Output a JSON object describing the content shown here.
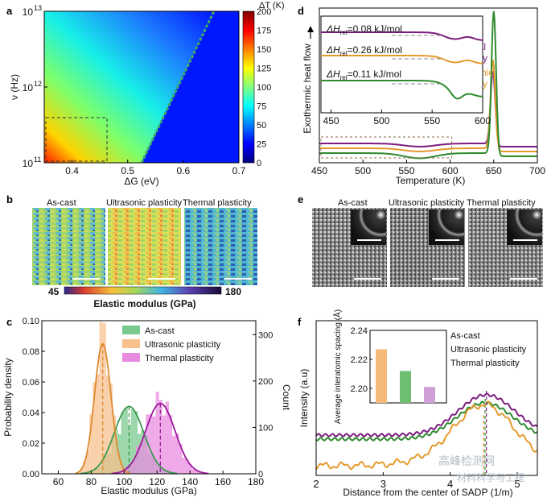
{
  "chart_data": [
    {
      "panel": "a",
      "type": "heatmap",
      "xlabel": "ΔG (eV)",
      "ylabel": "ν (Hz)",
      "colorbar_label": "ΔT (K)",
      "xlim": [
        0.35,
        0.7
      ],
      "ylim_log10": [
        11,
        13
      ],
      "x_ticks": [
        "0.4",
        "0.5",
        "0.6",
        "0.7"
      ],
      "y_ticks": [
        "10",
        "10",
        "10"
      ],
      "y_tick_exponents": [
        "11",
        "12",
        "13"
      ],
      "colorbar_ticks": [
        "0",
        "25",
        "50",
        "75",
        "100",
        "125",
        "150",
        "175",
        "200"
      ],
      "zlim": [
        0,
        200
      ]
    },
    {
      "panel": "b",
      "type": "heatmap",
      "maps": [
        "As-cast",
        "Ultrasonic plasticity",
        "Thermal plasticity"
      ],
      "colorbar_label": "Elastic modulus (GPa)",
      "colorbar_min": "45",
      "colorbar_max": "180"
    },
    {
      "panel": "c",
      "type": "bar",
      "xlabel": "Elastic modulus (GPa)",
      "ylabel": "Probability density",
      "y2label": "Count",
      "xlim": [
        50,
        180
      ],
      "ylim": [
        0,
        0.1
      ],
      "y2lim": [
        0,
        330
      ],
      "x_ticks": [
        "60",
        "80",
        "100",
        "120",
        "140",
        "160",
        "180"
      ],
      "y_ticks": [
        "0.00",
        "0.02",
        "0.04",
        "0.06",
        "0.08",
        "0.10"
      ],
      "y2_ticks": [
        "0",
        "100",
        "200",
        "300"
      ],
      "series": [
        {
          "name": "As-cast",
          "mean": 103,
          "sd": 9,
          "peak": 0.044,
          "color": "#79c98e",
          "line": "#3a9a4f"
        },
        {
          "name": "Ultrasonic plasticity",
          "mean": 87,
          "sd": 5,
          "peak": 0.085,
          "color": "#f7c08d",
          "line": "#e08a2e"
        },
        {
          "name": "Thermal plasticity",
          "mean": 122,
          "sd": 9,
          "peak": 0.046,
          "color": "#e98ce0",
          "line": "#9b1a9b"
        }
      ]
    },
    {
      "panel": "d",
      "type": "line",
      "xlabel": "Temperature (K)",
      "ylabel": "Exothermic heat flow",
      "xlim": [
        450,
        700
      ],
      "x_ticks": [
        "450",
        "500",
        "550",
        "600",
        "650",
        "700"
      ],
      "series": [
        {
          "name": "Thermal plasticity",
          "color": "#7b1d7f",
          "peak_x": 649,
          "base": 0.28
        },
        {
          "name": "Ultrasonic plasticity",
          "color": "#e59a2c",
          "peak_x": 649,
          "base": 0.22
        },
        {
          "name": "As-cast",
          "color": "#2e8b2e",
          "peak_x": 650,
          "base": 0.14
        }
      ],
      "inset": {
        "xlim": [
          440,
          600
        ],
        "x_ticks": [
          "450",
          "500",
          "550",
          "600"
        ],
        "annotations": [
          {
            "sym": "ΔH",
            "sub": "rel",
            "text": "=0.08 kJ/mol"
          },
          {
            "sym": "ΔH",
            "sub": "rel",
            "text": "=0.26 kJ/mol"
          },
          {
            "sym": "ΔH",
            "sub": "rel",
            "text": "=0.11 kJ/mol"
          }
        ]
      }
    },
    {
      "panel": "e",
      "type": "other",
      "images": [
        "As-cast",
        "Ultrasonic plasticity",
        "Thermal plasticity"
      ]
    },
    {
      "panel": "f",
      "type": "line",
      "xlabel": "Distance from the center of SADP (1/m)",
      "ylabel": "Intensity (a.u)",
      "xlim": [
        2,
        5.3
      ],
      "x_ticks": [
        "2",
        "3",
        "4",
        "5"
      ],
      "series": [
        {
          "name": "As-cast",
          "color": "#2e8b2e",
          "peak_x": 4.52
        },
        {
          "name": "Ultrasonic plasticity",
          "color": "#e59a2c",
          "peak_x": 4.5
        },
        {
          "name": "Thermal plasticity",
          "color": "#7b1d7f",
          "peak_x": 4.54
        }
      ],
      "inset": {
        "type": "bar",
        "ylabel": "Average interatomic spacing (Å)",
        "ylim": [
          2.19,
          2.24
        ],
        "y_ticks": [
          "2.20",
          "2.22",
          "2.24"
        ],
        "values": [
          2.227,
          2.212,
          2.201
        ],
        "colors": [
          "#f5b97a",
          "#6fbf73",
          "#cfa0d8"
        ]
      }
    }
  ],
  "panel_labels": [
    "a",
    "b",
    "c",
    "d",
    "e",
    "f"
  ],
  "watermark": "高峰检测网",
  "watermark2": "材料科学与工程"
}
